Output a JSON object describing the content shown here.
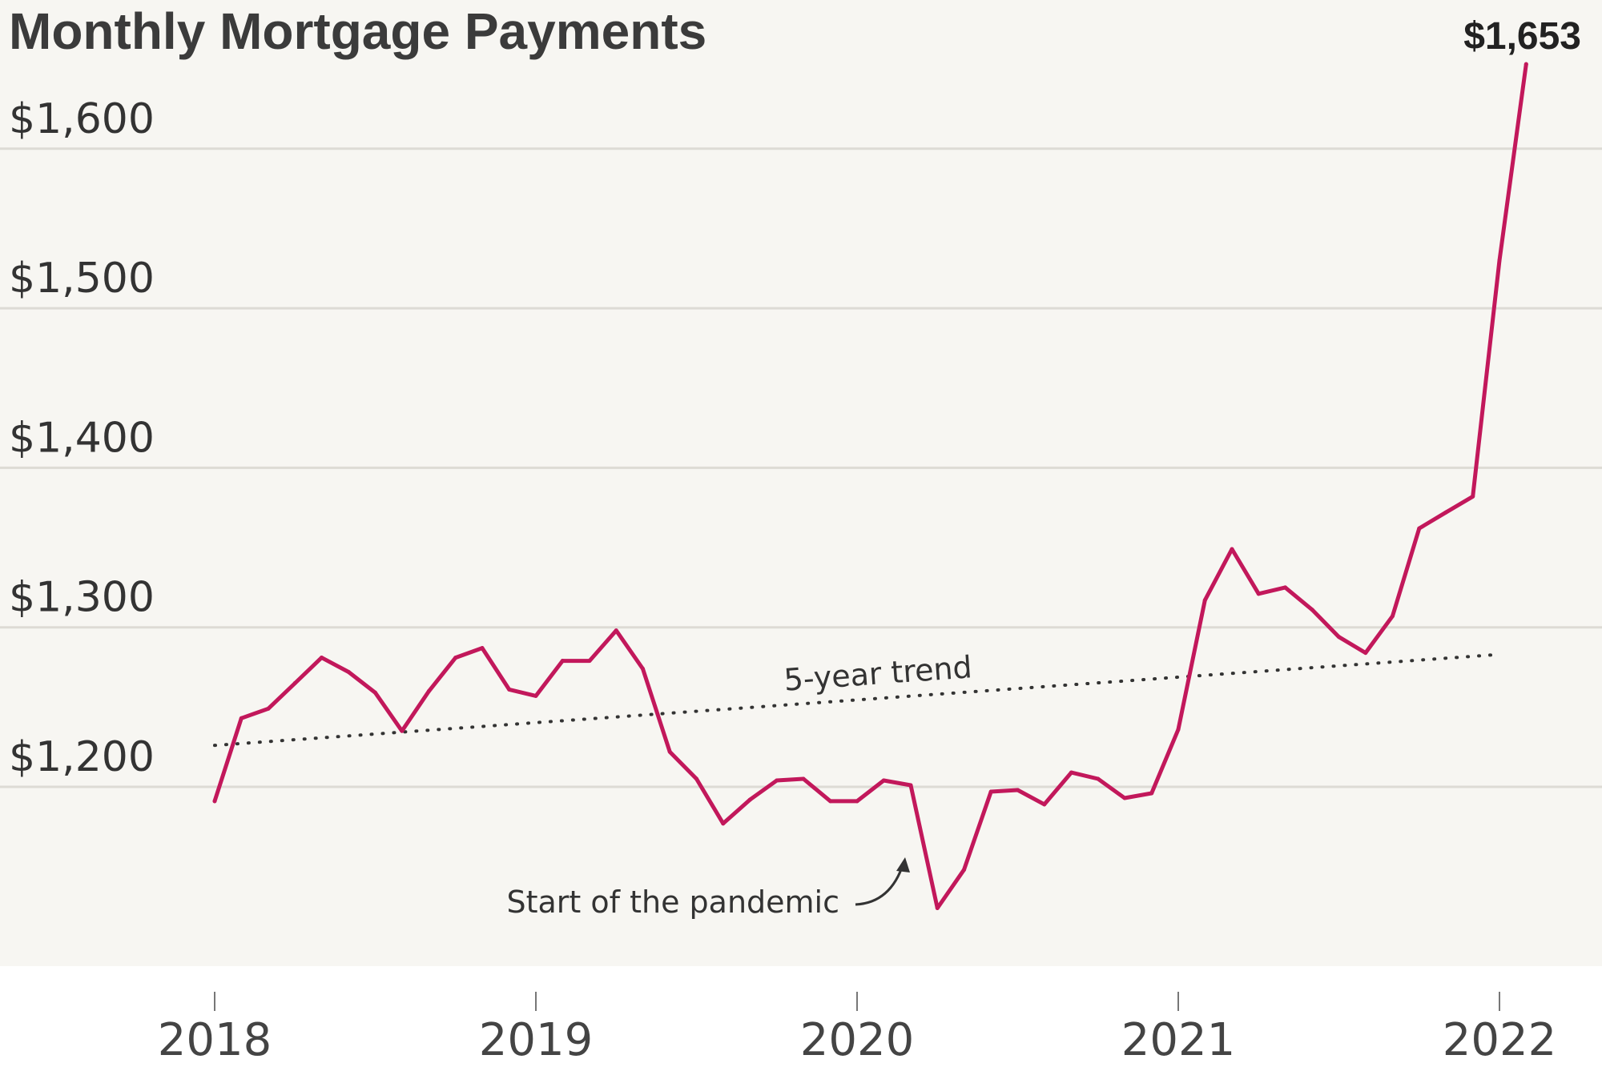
{
  "chart_data": {
    "type": "line",
    "title": "Monthly Mortgage Payments",
    "ylabel": "",
    "xlabel": "",
    "ylim": [
      1080,
      1680
    ],
    "xlim": [
      2018.0,
      2022.2
    ],
    "y_ticks": [
      {
        "value": 1200,
        "label": "$1,200"
      },
      {
        "value": 1300,
        "label": "$1,300"
      },
      {
        "value": 1400,
        "label": "$1,400"
      },
      {
        "value": 1500,
        "label": "$1,500"
      },
      {
        "value": 1600,
        "label": "$1,600"
      }
    ],
    "x_ticks": [
      {
        "value": 2018,
        "label": "2018"
      },
      {
        "value": 2019,
        "label": "2019"
      },
      {
        "value": 2020,
        "label": "2020"
      },
      {
        "value": 2021,
        "label": "2021"
      },
      {
        "value": 2022,
        "label": "2022"
      }
    ],
    "grid": true,
    "series": [
      {
        "color": "#c2185b",
        "x": [
          2018.0,
          2018.083,
          2018.167,
          2018.25,
          2018.333,
          2018.417,
          2018.5,
          2018.583,
          2018.667,
          2018.75,
          2018.833,
          2018.917,
          2019.0,
          2019.083,
          2019.167,
          2019.25,
          2019.333,
          2019.417,
          2019.5,
          2019.583,
          2019.667,
          2019.75,
          2019.833,
          2019.917,
          2020.0,
          2020.083,
          2020.167,
          2020.25,
          2020.333,
          2020.417,
          2020.5,
          2020.583,
          2020.667,
          2020.75,
          2020.833,
          2020.917,
          2021.0,
          2021.083,
          2021.167,
          2021.25,
          2021.333,
          2021.417,
          2021.5,
          2021.583,
          2021.667,
          2021.75,
          2021.833,
          2021.917,
          2022.0,
          2022.083
        ],
        "values": [
          1191,
          1243,
          1249,
          1265,
          1281,
          1272,
          1259,
          1235,
          1260,
          1281,
          1287,
          1261,
          1257,
          1279,
          1279,
          1298,
          1274,
          1222,
          1205,
          1177,
          1192,
          1204,
          1205,
          1191,
          1191,
          1204,
          1201,
          1124,
          1148,
          1197,
          1198,
          1189,
          1209,
          1205,
          1193,
          1196,
          1236,
          1317,
          1349,
          1321,
          1325,
          1311,
          1294,
          1284,
          1307,
          1362,
          1372,
          1382,
          1530,
          1653
        ]
      }
    ],
    "trend": {
      "label": "5-year trend",
      "x": [
        2018.0,
        2022.0
      ],
      "values": [
        1226,
        1283
      ]
    },
    "annotations": [
      {
        "text": "Start of the pandemic",
        "x": 2020.167,
        "y": 1122
      }
    ],
    "end_label": {
      "text": "$1,653",
      "x": 2022.083,
      "y": 1653
    }
  }
}
